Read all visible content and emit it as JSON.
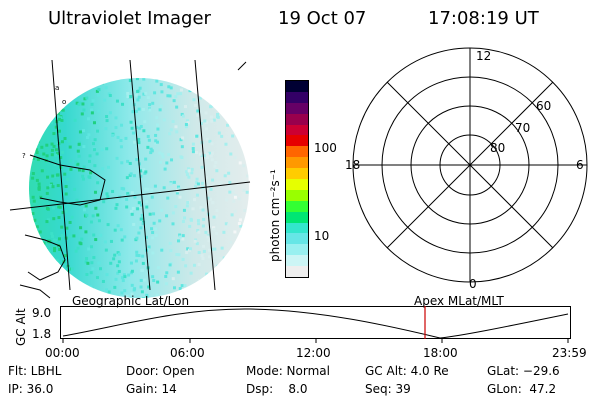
{
  "header": {
    "title": "Ultraviolet Imager",
    "date": "19 Oct 07",
    "time": "17:08:19 UT"
  },
  "colorbar": {
    "unit_label": "photon cm⁻²s⁻¹",
    "ticks": [
      "100",
      "10"
    ],
    "colors": [
      "#000033",
      "#330066",
      "#660066",
      "#99004d",
      "#cc0033",
      "#e60000",
      "#ff6600",
      "#ff9900",
      "#ffcc00",
      "#e6ff00",
      "#99ff00",
      "#33ff33",
      "#00e673",
      "#33e6cc",
      "#66e6e6",
      "#99f0f0",
      "#ccf5f5",
      "#eeeeee"
    ]
  },
  "polar": {
    "rings": [
      "80",
      "70",
      "60"
    ],
    "hours": {
      "top": "12",
      "bottom": "0",
      "left": "18",
      "right": "6"
    }
  },
  "timeline": {
    "left_label": "Geographic Lat/Lon",
    "right_label": "Apex  MLat/MLT",
    "axis_title": "GC Alt",
    "y_top": "9.0",
    "y_bottom": "1.8",
    "xticks": [
      "00:00",
      "06:00",
      "12:00",
      "18:00",
      "23:59"
    ],
    "marker_color": "#cc0000"
  },
  "status": {
    "flt": "Flt: LBHL",
    "ip": "IP: 36.0",
    "door": "Door: Open",
    "gain": "Gain: 14",
    "mode": "Mode: Normal",
    "dsp": "Dsp:    8.0",
    "gcalt": "GC Alt: 4.0 Re",
    "seq": "Seq: 39",
    "glat": "GLat: −29.6",
    "glon": "GLon:  47.2"
  }
}
